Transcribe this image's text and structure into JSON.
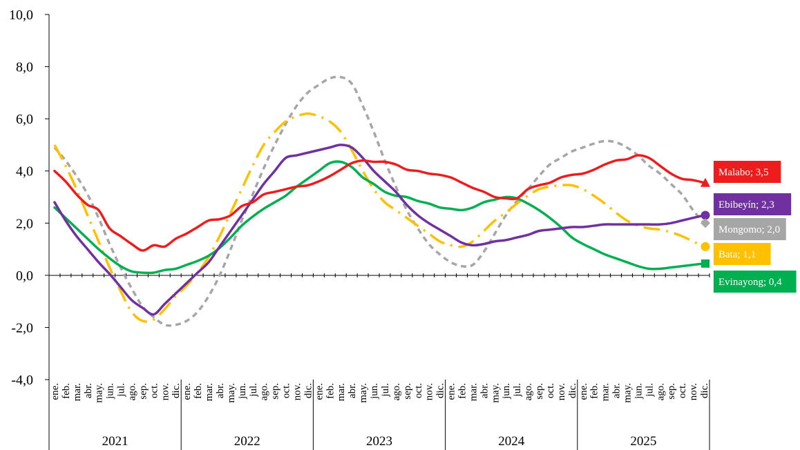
{
  "chart_data": {
    "type": "line",
    "ylim": [
      -4,
      10
    ],
    "y_ticks": [
      "10,0",
      "8,0",
      "6,0",
      "4,0",
      "2,0",
      "0,0",
      "-2,0",
      "-4,0"
    ],
    "month_labels": [
      "ene.",
      "feb.",
      "mar.",
      "abr.",
      "may.",
      "jun.",
      "jul.",
      "ago.",
      "sep.",
      "oct.",
      "nov.",
      "dic."
    ],
    "years": [
      "2021",
      "2022",
      "2023",
      "2024",
      "2025"
    ],
    "grid": false,
    "series": [
      {
        "name": "Malabo",
        "color": "#ee1c1c",
        "style": "solid",
        "marker": "triangle",
        "end_label": "Malabo; 3,5",
        "values": [
          4.0,
          3.6,
          3.1,
          2.7,
          2.5,
          1.8,
          1.5,
          1.2,
          0.95,
          1.15,
          1.1,
          1.4,
          1.6,
          1.85,
          2.1,
          2.15,
          2.3,
          2.65,
          2.8,
          3.1,
          3.2,
          3.3,
          3.4,
          3.45,
          3.6,
          3.8,
          4.05,
          4.3,
          4.4,
          4.35,
          4.35,
          4.25,
          4.05,
          4.0,
          3.9,
          3.85,
          3.75,
          3.55,
          3.35,
          3.2,
          3.0,
          2.95,
          2.95,
          3.3,
          3.45,
          3.55,
          3.75,
          3.85,
          3.9,
          4.05,
          4.25,
          4.4,
          4.45,
          4.6,
          4.5,
          4.2,
          3.9,
          3.7,
          3.65,
          3.55
        ]
      },
      {
        "name": "Ebibeyín",
        "color": "#7030a0",
        "style": "solid",
        "marker": "circle",
        "end_label": "Ebibeyín; 2,3",
        "values": [
          2.8,
          2.1,
          1.5,
          1.0,
          0.5,
          0.05,
          -0.45,
          -0.95,
          -1.25,
          -1.5,
          -1.1,
          -0.7,
          -0.3,
          0.1,
          0.5,
          1.1,
          1.7,
          2.3,
          2.9,
          3.5,
          4.0,
          4.5,
          4.6,
          4.7,
          4.8,
          4.9,
          5.0,
          4.9,
          4.5,
          4.0,
          3.6,
          3.2,
          2.7,
          2.3,
          2.0,
          1.75,
          1.5,
          1.25,
          1.15,
          1.2,
          1.3,
          1.35,
          1.45,
          1.55,
          1.7,
          1.75,
          1.8,
          1.85,
          1.85,
          1.9,
          1.95,
          1.95,
          1.95,
          1.95,
          1.95,
          1.95,
          2.0,
          2.1,
          2.2,
          2.3
        ]
      },
      {
        "name": "Mongomo",
        "color": "#a6a6a6",
        "style": "dashed",
        "marker": "diamond",
        "end_label": "Mongomo; 2,0",
        "values": [
          4.9,
          4.4,
          3.8,
          3.1,
          2.2,
          1.2,
          0.3,
          -0.5,
          -1.2,
          -1.6,
          -1.9,
          -1.9,
          -1.75,
          -1.4,
          -0.8,
          0.0,
          1.0,
          2.1,
          3.1,
          4.1,
          5.0,
          5.8,
          6.5,
          7.0,
          7.3,
          7.55,
          7.6,
          7.35,
          6.5,
          5.5,
          4.4,
          3.4,
          2.5,
          1.8,
          1.2,
          0.8,
          0.5,
          0.35,
          0.4,
          0.9,
          1.6,
          2.3,
          2.85,
          3.3,
          3.8,
          4.25,
          4.5,
          4.75,
          4.9,
          5.05,
          5.15,
          5.1,
          4.9,
          4.6,
          4.2,
          3.9,
          3.5,
          3.1,
          2.5,
          2.0
        ]
      },
      {
        "name": "Bata",
        "color": "#ffc000",
        "style": "dashdot",
        "marker": "circle",
        "end_label": "Bata; 1,1",
        "values": [
          5.0,
          4.2,
          3.3,
          2.3,
          1.3,
          0.3,
          -0.6,
          -1.4,
          -1.75,
          -1.7,
          -1.3,
          -0.8,
          -0.4,
          0.1,
          0.7,
          1.5,
          2.4,
          3.3,
          4.2,
          5.0,
          5.5,
          5.9,
          6.1,
          6.2,
          6.1,
          5.9,
          5.5,
          4.8,
          4.0,
          3.3,
          2.8,
          2.5,
          2.2,
          1.9,
          1.6,
          1.3,
          1.15,
          1.1,
          1.3,
          1.7,
          2.1,
          2.4,
          2.75,
          3.05,
          3.3,
          3.4,
          3.45,
          3.45,
          3.3,
          3.05,
          2.75,
          2.4,
          2.1,
          1.9,
          1.8,
          1.75,
          1.65,
          1.5,
          1.3,
          1.1
        ]
      },
      {
        "name": "Evinayong",
        "color": "#00b050",
        "style": "solid",
        "marker": "square",
        "end_label": "Evinayong; 0,4",
        "values": [
          2.6,
          2.2,
          1.8,
          1.4,
          1.0,
          0.65,
          0.35,
          0.15,
          0.1,
          0.1,
          0.2,
          0.25,
          0.4,
          0.55,
          0.75,
          1.05,
          1.45,
          1.9,
          2.25,
          2.55,
          2.8,
          3.05,
          3.4,
          3.7,
          4.0,
          4.3,
          4.35,
          4.15,
          3.75,
          3.5,
          3.2,
          3.05,
          3.0,
          2.85,
          2.75,
          2.6,
          2.55,
          2.5,
          2.6,
          2.8,
          2.9,
          3.0,
          2.95,
          2.75,
          2.5,
          2.2,
          1.85,
          1.45,
          1.2,
          1.0,
          0.8,
          0.65,
          0.5,
          0.35,
          0.25,
          0.25,
          0.3,
          0.35,
          0.4,
          0.45
        ]
      }
    ]
  }
}
